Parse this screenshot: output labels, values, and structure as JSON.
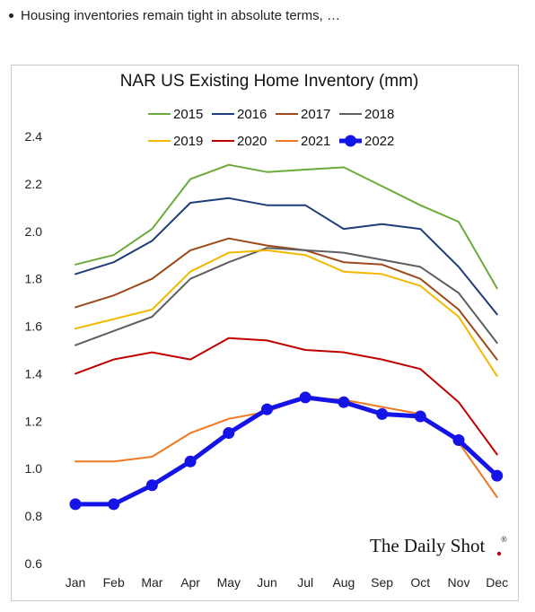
{
  "header": {
    "bullet_text": "Housing inventories remain tight in absolute terms, …"
  },
  "brand": {
    "name": "The Daily Shot",
    "reg_mark": "®",
    "dot_color": "#c00000"
  },
  "chart_data": {
    "type": "line",
    "title": "NAR US Existing Home Inventory (mm)",
    "xlabel": "",
    "ylabel": "",
    "categories": [
      "Jan",
      "Feb",
      "Mar",
      "Apr",
      "May",
      "Jun",
      "Jul",
      "Aug",
      "Sep",
      "Oct",
      "Nov",
      "Dec"
    ],
    "ylim": [
      0.6,
      2.4
    ],
    "yticks": [
      "0.6",
      "0.8",
      "1.0",
      "1.2",
      "1.4",
      "1.6",
      "1.8",
      "2.0",
      "2.2",
      "2.4"
    ],
    "grid": false,
    "legend_position": "top",
    "series": [
      {
        "name": "2015",
        "color": "#6aab3c",
        "values": [
          1.86,
          1.9,
          2.01,
          2.22,
          2.28,
          2.25,
          2.26,
          2.27,
          2.19,
          2.11,
          2.04,
          1.76
        ]
      },
      {
        "name": "2016",
        "color": "#1f3d7a",
        "values": [
          1.82,
          1.87,
          1.96,
          2.12,
          2.14,
          2.11,
          2.11,
          2.01,
          2.03,
          2.01,
          1.85,
          1.65
        ]
      },
      {
        "name": "2017",
        "color": "#9c4a1a",
        "values": [
          1.68,
          1.73,
          1.8,
          1.92,
          1.97,
          1.94,
          1.92,
          1.87,
          1.86,
          1.8,
          1.67,
          1.46
        ]
      },
      {
        "name": "2018",
        "color": "#5f5f5f",
        "values": [
          1.52,
          1.58,
          1.64,
          1.8,
          1.87,
          1.93,
          1.92,
          1.91,
          1.88,
          1.85,
          1.74,
          1.53
        ]
      },
      {
        "name": "2019",
        "color": "#f2b800",
        "values": [
          1.59,
          1.63,
          1.67,
          1.83,
          1.91,
          1.92,
          1.9,
          1.83,
          1.82,
          1.77,
          1.64,
          1.39
        ]
      },
      {
        "name": "2020",
        "color": "#c00000",
        "values": [
          1.4,
          1.46,
          1.49,
          1.46,
          1.55,
          1.54,
          1.5,
          1.49,
          1.46,
          1.42,
          1.28,
          1.06
        ]
      },
      {
        "name": "2021",
        "color": "#f07820",
        "values": [
          1.03,
          1.03,
          1.05,
          1.15,
          1.21,
          1.24,
          1.3,
          1.29,
          1.26,
          1.23,
          1.11,
          0.88
        ]
      },
      {
        "name": "2022",
        "color": "#1414e6",
        "emphasis": true,
        "values": [
          0.85,
          0.85,
          0.93,
          1.03,
          1.15,
          1.25,
          1.3,
          1.28,
          1.23,
          1.22,
          1.12,
          0.97
        ]
      }
    ]
  }
}
